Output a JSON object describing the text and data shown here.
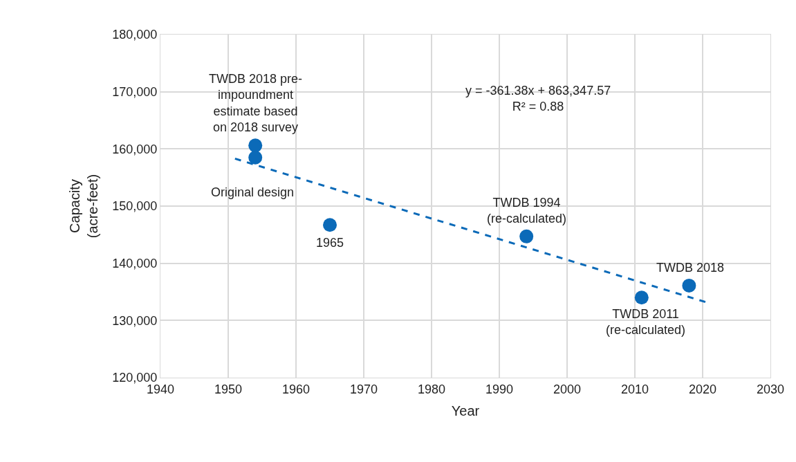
{
  "chart_data": {
    "type": "scatter",
    "xlabel": "Year",
    "ylabel": "Capacity\n(acre-feet)",
    "xlim": [
      1940,
      2030
    ],
    "xticks": [
      1940,
      1950,
      1960,
      1970,
      1980,
      1990,
      2000,
      2010,
      2020,
      2030
    ],
    "ylim": [
      120000,
      180000
    ],
    "yticks": [
      {
        "value": 120000,
        "label": "120,000"
      },
      {
        "value": 130000,
        "label": "130,000"
      },
      {
        "value": 140000,
        "label": "140,000"
      },
      {
        "value": 150000,
        "label": "150,000"
      },
      {
        "value": 160000,
        "label": "160,000"
      },
      {
        "value": 170000,
        "label": "170,000"
      },
      {
        "value": 180000,
        "label": "180,000"
      }
    ],
    "grid": true,
    "marker": "circle",
    "series": [
      {
        "color": "#0b6ab8",
        "x": [
          1954,
          1954,
          1965,
          1994,
          2011,
          2018
        ],
        "values": [
          160600,
          158500,
          146700,
          144700,
          134000,
          136100
        ]
      },
      {
        "type": "line",
        "color": "#0b6ab8",
        "line_style": "dashed",
        "marker": "none",
        "x": [
          1951,
          2020.5
        ],
        "values": [
          158300,
          133200
        ]
      }
    ],
    "annotations": [
      {
        "text": "TWDB 2018 pre-\nimpoundment\nestimate based\non 2018 survey",
        "x": 1954,
        "y": 160600
      },
      {
        "text": "Original design",
        "x": 1954,
        "y": 158500
      },
      {
        "text": "1965",
        "x": 1965,
        "y": 146700
      },
      {
        "text": "TWDB 1994\n(re-calculated)",
        "x": 1994,
        "y": 144700
      },
      {
        "text": "TWDB 2011\n(re-calculated)",
        "x": 2011,
        "y": 134000
      },
      {
        "text": "TWDB 2018",
        "x": 2018,
        "y": 136100
      },
      "y = -361.38x + 863,347.57\nR² = 0.88"
    ]
  }
}
